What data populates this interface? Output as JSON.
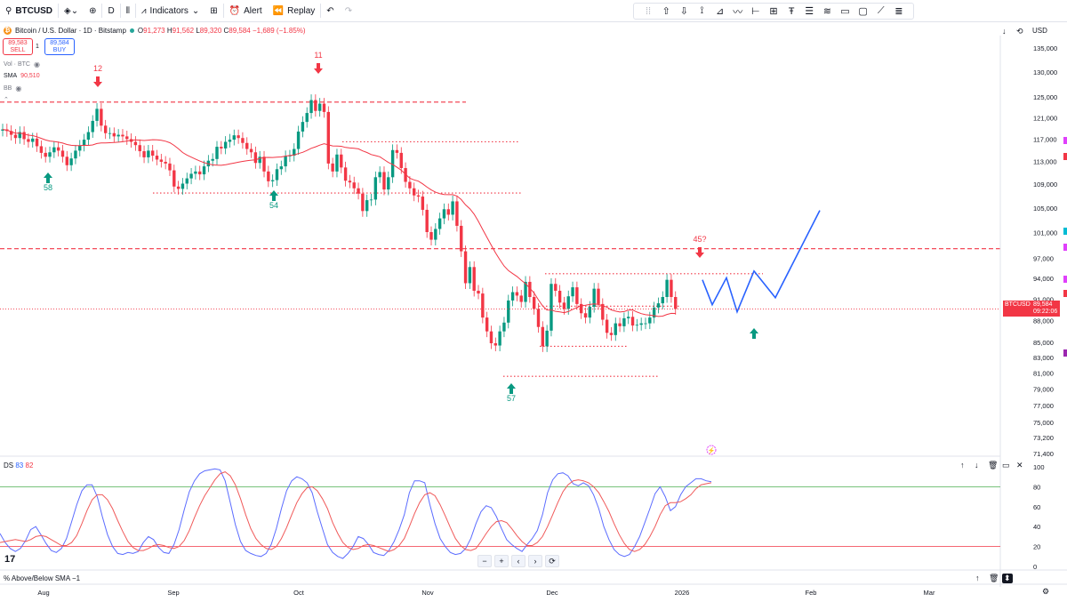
{
  "toolbar": {
    "symbol": "BTCUSD",
    "interval": "D",
    "indicators_label": "Indicators",
    "alert_label": "Alert",
    "replay_label": "Replay"
  },
  "legend": {
    "title": "Bitcoin / U.S. Dollar · 1D · Bitstamp",
    "open": "91,273",
    "high": "91,562",
    "low": "89,320",
    "close": "89,584",
    "change": "−1,689 (−1.85%)",
    "sell_price": "89,583",
    "sell_label": "SELL",
    "spread": "1",
    "buy_price": "89,584",
    "buy_label": "BUY",
    "vol_label": "Vol · BTC",
    "sma_label": "SMA",
    "sma_value": "90,510",
    "bb_label": "BB",
    "currency": "USD"
  },
  "price_axis": {
    "labels": [
      "135,000",
      "130,000",
      "125,000",
      "121,000",
      "117,000",
      "113,000",
      "109,000",
      "105,000",
      "101,000",
      "97,000",
      "94,000",
      "91,000",
      "88,000",
      "85,000",
      "83,000",
      "81,000",
      "79,000",
      "77,000",
      "75,000",
      "73,200",
      "71,400"
    ],
    "current_symbol": "BTCUSD",
    "current_price": "89,584",
    "countdown": "09:22:06"
  },
  "time_axis": [
    "Aug",
    "Sep",
    "Oct",
    "Nov",
    "Dec",
    "2026",
    "Feb",
    "Mar"
  ],
  "annotations": [
    {
      "text": "12",
      "kind": "down"
    },
    {
      "text": "58",
      "kind": "up"
    },
    {
      "text": "11",
      "kind": "down"
    },
    {
      "text": "54",
      "kind": "up"
    },
    {
      "text": "57",
      "kind": "up"
    },
    {
      "text": "45?",
      "kind": "down"
    }
  ],
  "oscillator": {
    "label": "DS",
    "value1": "83",
    "value2": "82",
    "axis_labels": [
      "100",
      "80",
      "60",
      "40",
      "20",
      "0"
    ]
  },
  "bottom_pane": {
    "label": "% Above/Below SMA",
    "value": "−1"
  },
  "colors": {
    "up": "#089981",
    "down": "#f23645",
    "sma": "#f23645",
    "projection": "#2962ff",
    "level": "#f23645"
  },
  "chart_data": {
    "type": "candlestick",
    "title": "Bitcoin / U.S. Dollar · 1D · Bitstamp",
    "ylim": [
      71400,
      135000
    ],
    "y_scale": "log",
    "x_labels": [
      "Aug",
      "Sep",
      "Oct",
      "Nov",
      "Dec",
      "2026",
      "Feb",
      "Mar"
    ],
    "closes": [
      118800,
      118500,
      117800,
      117200,
      118300,
      117000,
      116500,
      117100,
      115700,
      114500,
      113800,
      114600,
      115500,
      114900,
      113800,
      112300,
      113500,
      114900,
      115800,
      116900,
      118300,
      120400,
      122700,
      119500,
      118100,
      118100,
      117500,
      117800,
      117500,
      117000,
      116500,
      115900,
      114800,
      113700,
      114900,
      114000,
      113300,
      112900,
      112600,
      111400,
      108600,
      108200,
      109100,
      110000,
      110800,
      111200,
      110700,
      112100,
      113100,
      113400,
      115600,
      115300,
      116500,
      116900,
      117700,
      117200,
      116300,
      115200,
      114600,
      112700,
      113800,
      111200,
      109500,
      109700,
      111600,
      112100,
      113900,
      114000,
      115200,
      118400,
      120200,
      121900,
      124400,
      122300,
      123700,
      122100,
      112600,
      111200,
      114200,
      111900,
      109600,
      109300,
      108300,
      107400,
      104500,
      106300,
      106400,
      110200,
      111100,
      108100,
      110200,
      115000,
      114500,
      111800,
      109400,
      108300,
      107100,
      106900,
      104700,
      101100,
      99900,
      101600,
      103300,
      104800,
      103900,
      106100,
      102100,
      98100,
      93300,
      95700,
      92200,
      91800,
      88400,
      86500,
      84900,
      84600,
      86500,
      87700,
      90800,
      92000,
      91500,
      90600,
      93500,
      91300,
      89600,
      87100,
      84500,
      86600,
      93200,
      92200,
      90500,
      89600,
      91400,
      92700,
      90300,
      89000,
      88400,
      89900,
      92500,
      90300,
      88100,
      86300,
      86000,
      87600,
      87200,
      88300,
      88500,
      87300,
      87400,
      87600,
      87600,
      88400,
      89800,
      90400,
      91300,
      93800,
      91300,
      89600
    ],
    "sma_period": 20,
    "levels": [
      {
        "value": 124000,
        "style": "dashed"
      },
      {
        "value": 98500,
        "style": "dashed"
      },
      {
        "value": 116500,
        "style": "dotted"
      },
      {
        "value": 107500,
        "style": "dotted"
      },
      {
        "value": 94700,
        "style": "dotted"
      },
      {
        "value": 90000,
        "style": "dotted"
      },
      {
        "value": 84500,
        "style": "dotted"
      },
      {
        "value": 80600,
        "style": "dotted"
      }
    ],
    "projection": [
      93800,
      90200,
      94100,
      89200,
      95100,
      91200,
      104600
    ],
    "oscillator": {
      "ylim": [
        0,
        100
      ],
      "levels": [
        80,
        20
      ],
      "blue": [
        33,
        24,
        18,
        15,
        18,
        26,
        37,
        40,
        32,
        23,
        16,
        14,
        18,
        28,
        45,
        62,
        76,
        82,
        82,
        70,
        50,
        32,
        20,
        13,
        12,
        14,
        13,
        15,
        24,
        30,
        27,
        19,
        14,
        13,
        22,
        37,
        57,
        75,
        86,
        93,
        96,
        97,
        98,
        97,
        86,
        64,
        42,
        25,
        16,
        13,
        11,
        10,
        13,
        22,
        38,
        58,
        76,
        86,
        90,
        88,
        84,
        74,
        55,
        38,
        22,
        14,
        10,
        8,
        13,
        20,
        30,
        28,
        22,
        14,
        12,
        11,
        16,
        25,
        37,
        52,
        74,
        86,
        86,
        84,
        62,
        43,
        28,
        20,
        14,
        12,
        13,
        18,
        28,
        43,
        55,
        61,
        59,
        50,
        38,
        27,
        22,
        18,
        15,
        22,
        28,
        36,
        52,
        74,
        87,
        93,
        94,
        91,
        83,
        81,
        84,
        81,
        72,
        58,
        40,
        27,
        17,
        12,
        10,
        12,
        20,
        30,
        44,
        58,
        73,
        80,
        70,
        56,
        60,
        72,
        80,
        84,
        88,
        88,
        86,
        85
      ],
      "red": [
        24,
        25,
        26,
        27,
        26,
        25,
        27,
        30,
        31,
        30,
        27,
        24,
        21,
        21,
        24,
        31,
        43,
        56,
        67,
        72,
        72,
        67,
        58,
        46,
        35,
        25,
        19,
        16,
        16,
        18,
        21,
        22,
        21,
        19,
        18,
        20,
        26,
        36,
        49,
        61,
        71,
        79,
        87,
        93,
        95,
        91,
        82,
        68,
        52,
        38,
        28,
        22,
        18,
        17,
        20,
        28,
        39,
        52,
        64,
        73,
        79,
        80,
        76,
        68,
        58,
        44,
        33,
        24,
        19,
        17,
        18,
        21,
        22,
        21,
        19,
        17,
        15,
        17,
        21,
        28,
        40,
        53,
        64,
        72,
        74,
        71,
        62,
        51,
        39,
        28,
        21,
        17,
        16,
        18,
        25,
        33,
        40,
        45,
        46,
        44,
        38,
        31,
        25,
        21,
        21,
        24,
        30,
        40,
        52,
        64,
        75,
        82,
        86,
        87,
        86,
        84,
        80,
        74,
        65,
        55,
        43,
        32,
        23,
        17,
        15,
        17,
        22,
        30,
        40,
        52,
        61,
        64,
        64,
        65,
        68,
        72,
        78,
        82,
        83,
        84
      ]
    }
  }
}
